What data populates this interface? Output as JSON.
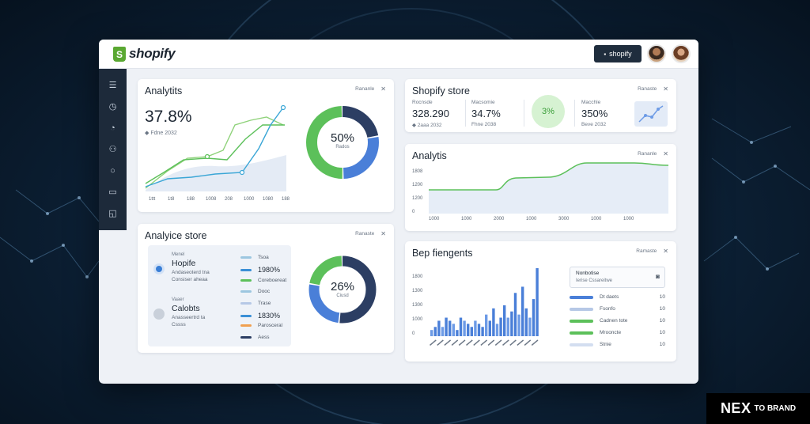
{
  "app": {
    "logo_text": "shopify",
    "button_label": "shopify"
  },
  "colors": {
    "accent_green": "#5cc05a",
    "accent_blue": "#3a8fd6",
    "navy": "#2c3e63",
    "sidebar": "#1d2a3a"
  },
  "sidebar": {
    "icons": [
      "list-icon",
      "clock-icon",
      "chart-icon",
      "user-icon",
      "chat-icon",
      "message-icon",
      "bag-icon"
    ]
  },
  "analytics_card": {
    "title": "Analytits",
    "pill": "Rananle",
    "big_value": "37.8%",
    "note": "◆ Fdne 2032",
    "x_ticks": [
      "1ttt",
      "1t8",
      "188",
      "1008",
      "208",
      "1000",
      "1080",
      "188"
    ],
    "donut_pct": "50%",
    "donut_sub": "Rados",
    "donut_fraction": 0.5
  },
  "store_card": {
    "title": "Analyice store",
    "pill": "Ranaste",
    "item1": {
      "lbl": "Menel",
      "name": "Hopife",
      "sub1": "Andaseoterd tna",
      "sub2": "Consiser aheaa"
    },
    "item2": {
      "lbl": "Vaaer",
      "name": "Calobts",
      "sub1": "Anasseertrd ta",
      "sub2": "Cssss"
    },
    "list": [
      {
        "label": "Tsoa",
        "value": ""
      },
      {
        "label": "",
        "value": "1980%"
      },
      {
        "label": "Coreboereat",
        "value": ""
      },
      {
        "label": "Dooc",
        "value": ""
      },
      {
        "label": "Trase",
        "value": ""
      },
      {
        "label": "",
        "value": "1830%"
      },
      {
        "label": "Parosceral",
        "value": ""
      },
      {
        "label": "Aess",
        "value": ""
      }
    ],
    "donut_pct": "26%",
    "donut_sub": "Ciusd",
    "donut_fraction": 0.26
  },
  "shopify_store_card": {
    "title": "Shopify store",
    "pill": "Ranaste",
    "m1": {
      "lbl": "Rocnsde",
      "val": "328.290",
      "sub": "◆ 2aaa 2032"
    },
    "m2": {
      "lbl": "Macsomie",
      "val": "34.7%",
      "sub": "Fhne 2038"
    },
    "badge": "3%",
    "m3": {
      "lbl": "Macchle",
      "val": "350%",
      "sub": "Beve 2032"
    }
  },
  "analytis_card": {
    "title": "Analytis",
    "pill": "Rananle",
    "y_ticks": [
      "1808",
      "1200",
      "1200",
      "0"
    ],
    "x_ticks": [
      "1000",
      "1000",
      "2000",
      "1000",
      "3000",
      "1000",
      "1000"
    ]
  },
  "bep_card": {
    "title": "Bep fiengents",
    "pill": "Ramaste",
    "y_ticks": [
      "1800",
      "1300",
      "1300",
      "1000",
      "0"
    ],
    "legend_title": "Nonbotise",
    "legend_sub": "Ierise Cssareitwe",
    "legend": [
      {
        "label": "Dt daets",
        "value": "10"
      },
      {
        "label": "Fsonfo",
        "value": "10"
      },
      {
        "label": "Cadnen tote",
        "value": "10"
      },
      {
        "label": "Mrooncte",
        "value": "10"
      },
      {
        "label": "Stnie",
        "value": "10"
      }
    ],
    "bars": [
      2,
      3,
      5,
      3,
      6,
      5,
      4,
      2,
      6,
      5,
      4,
      3,
      5,
      4,
      3,
      7,
      5,
      9,
      4,
      6,
      10,
      6,
      8,
      14,
      7,
      16,
      9,
      6,
      12,
      22
    ]
  },
  "brand": {
    "nex": "NEX",
    "tail": "TO BRAND"
  }
}
